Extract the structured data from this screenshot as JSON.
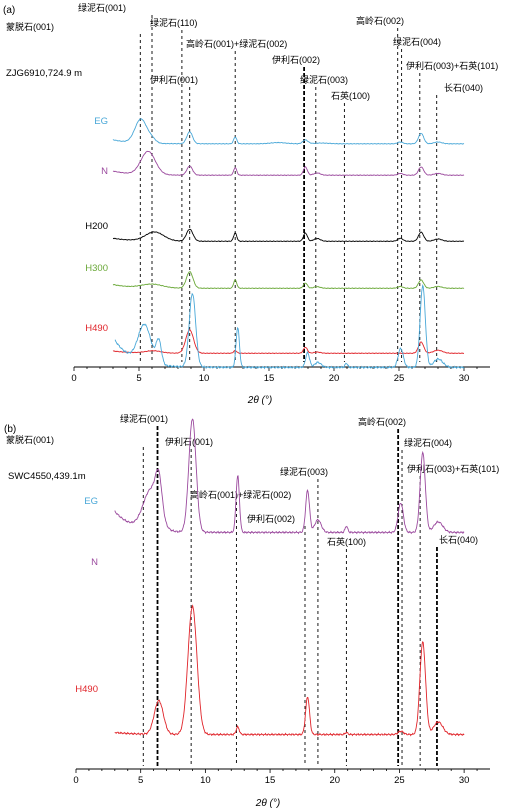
{
  "chart_data": [
    {
      "type": "line",
      "panel_label": "(a)",
      "sample": "ZJG6910,724.9 m",
      "xlabel": "2θ (°)",
      "xlim": [
        0,
        32
      ],
      "xticks": [
        0,
        5,
        10,
        15,
        20,
        25,
        30
      ],
      "grid": false,
      "legend": "inline labels left of each trace",
      "reference_lines": [
        {
          "x": 5.1,
          "label": "蒙脱石(001)",
          "style": "dashed"
        },
        {
          "x": 6.0,
          "label": "绿泥石(001)",
          "style": "dashed"
        },
        {
          "x": 8.3,
          "label": "绿泥石(110)",
          "style": "dashed"
        },
        {
          "x": 8.9,
          "label": "伊利石(001)",
          "style": "dashed"
        },
        {
          "x": 12.4,
          "label": "高岭石(001)+绿泥石(002)",
          "style": "dashed"
        },
        {
          "x": 17.7,
          "label": "伊利石(002)",
          "style": "bold-dashed"
        },
        {
          "x": 18.6,
          "label": "绿泥石(003)",
          "style": "dashed"
        },
        {
          "x": 20.8,
          "label": "石英(100)",
          "style": "dashed"
        },
        {
          "x": 24.9,
          "label": "高岭石(002)",
          "style": "dashed"
        },
        {
          "x": 25.2,
          "label": "绿泥石(004)",
          "style": "dashed"
        },
        {
          "x": 26.6,
          "label": "伊利石(003)+石英(101)",
          "style": "dashed"
        },
        {
          "x": 27.9,
          "label": "长石(040)",
          "style": "dashed"
        }
      ],
      "series": [
        {
          "name": "EG",
          "color": "#4aa8d8",
          "baseline": 0.28,
          "start": 0.55,
          "peaks": [
            [
              5.15,
              1.6,
              0.45
            ],
            [
              6.0,
              0.25,
              0.3
            ],
            [
              8.9,
              0.8,
              0.22
            ],
            [
              12.4,
              0.45,
              0.12
            ],
            [
              15.7,
              0.08,
              0.6
            ],
            [
              17.8,
              0.25,
              0.2
            ],
            [
              19.0,
              0.05,
              0.6
            ],
            [
              25.1,
              0.12,
              0.2
            ],
            [
              26.7,
              0.7,
              0.2
            ],
            [
              28.0,
              0.12,
              0.3
            ]
          ]
        },
        {
          "name": "N",
          "color": "#9b4a9e",
          "baseline": 0.32,
          "start": 0.6,
          "peaks": [
            [
              5.7,
              1.55,
              0.55
            ],
            [
              8.9,
              0.6,
              0.22
            ],
            [
              12.4,
              0.5,
              0.12
            ],
            [
              17.8,
              0.55,
              0.15
            ],
            [
              18.7,
              0.15,
              0.25
            ],
            [
              25.1,
              0.12,
              0.2
            ],
            [
              26.7,
              0.55,
              0.2
            ],
            [
              28.0,
              0.12,
              0.3
            ]
          ]
        },
        {
          "name": "H200",
          "color": "#000000",
          "baseline": 0.25,
          "start": 0.45,
          "peaks": [
            [
              6.2,
              0.6,
              0.7
            ],
            [
              8.9,
              0.8,
              0.25
            ],
            [
              12.4,
              0.55,
              0.12
            ],
            [
              17.8,
              0.55,
              0.15
            ],
            [
              18.7,
              0.18,
              0.25
            ],
            [
              25.1,
              0.2,
              0.2
            ],
            [
              26.7,
              0.6,
              0.2
            ],
            [
              28.0,
              0.15,
              0.3
            ]
          ]
        },
        {
          "name": "H300",
          "color": "#6aa838",
          "baseline": 0.25,
          "start": 0.5,
          "peaks": [
            [
              6.0,
              0.25,
              0.8
            ],
            [
              8.9,
              1.1,
              0.25
            ],
            [
              12.4,
              0.55,
              0.12
            ],
            [
              17.8,
              0.35,
              0.15
            ],
            [
              18.7,
              0.1,
              0.25
            ],
            [
              25.1,
              0.12,
              0.2
            ],
            [
              26.7,
              0.55,
              0.2
            ],
            [
              28.0,
              0.12,
              0.3
            ]
          ]
        },
        {
          "name": "H490",
          "color": "#e0242a",
          "baseline": 0.25,
          "start": 0.4,
          "peaks": [
            [
              6.1,
              0.15,
              0.6
            ],
            [
              8.9,
              1.55,
              0.3
            ],
            [
              12.4,
              0.18,
              0.12
            ],
            [
              17.8,
              0.4,
              0.15
            ],
            [
              18.7,
              0.08,
              0.25
            ],
            [
              26.7,
              0.75,
              0.2
            ],
            [
              28.0,
              0.2,
              0.35
            ]
          ]
        }
      ]
    },
    {
      "type": "line",
      "panel_label": "(b)",
      "sample": "SWC4550,439.1m",
      "xlabel": "2θ (°)",
      "xlim": [
        0,
        32
      ],
      "xticks": [
        0,
        5,
        10,
        15,
        20,
        25,
        30
      ],
      "grid": false,
      "legend": "inline labels left of each trace",
      "reference_lines": [
        {
          "x": 5.2,
          "label": "蒙脱石(001)",
          "style": "dashed"
        },
        {
          "x": 6.3,
          "label": "绿泥石(001)",
          "style": "bold-dashed"
        },
        {
          "x": 8.9,
          "label": "伊利石(001)",
          "style": "dashed"
        },
        {
          "x": 12.4,
          "label": "高岭石(001)+绿泥石(002)",
          "style": "dashed"
        },
        {
          "x": 17.7,
          "label": "伊利石(002)",
          "style": "dashed"
        },
        {
          "x": 18.7,
          "label": "绿泥石(003)",
          "style": "dashed"
        },
        {
          "x": 20.9,
          "label": "石英(100)",
          "style": "dashed"
        },
        {
          "x": 24.9,
          "label": "高岭石(002)",
          "style": "bold-dashed"
        },
        {
          "x": 25.2,
          "label": "绿泥石(004)",
          "style": "dashed"
        },
        {
          "x": 26.6,
          "label": "伊利石(003)+石英(101)",
          "style": "dashed"
        },
        {
          "x": 27.9,
          "label": "长石(040)",
          "style": "bold-dashed"
        }
      ],
      "series": [
        {
          "name": "EG",
          "color": "#4aa8d8",
          "baseline": 0.3,
          "start": 0.95,
          "peaks": [
            [
              5.3,
              0.9,
              0.5
            ],
            [
              6.4,
              0.55,
              0.2
            ],
            [
              9.0,
              1.75,
              0.25
            ],
            [
              12.5,
              0.95,
              0.13
            ],
            [
              17.9,
              0.35,
              0.15
            ],
            [
              18.7,
              0.12,
              0.25
            ],
            [
              20.9,
              0.1,
              0.1
            ],
            [
              25.1,
              0.45,
              0.2
            ],
            [
              26.8,
              1.95,
              0.2
            ],
            [
              28.0,
              0.2,
              0.35
            ]
          ]
        },
        {
          "name": "N",
          "color": "#9b4a9e",
          "baseline": 0.3,
          "start": 0.8,
          "peaks": [
            [
              5.8,
              0.95,
              0.6
            ],
            [
              6.4,
              0.85,
              0.25
            ],
            [
              9.0,
              2.7,
              0.28
            ],
            [
              12.5,
              1.35,
              0.13
            ],
            [
              17.9,
              1.0,
              0.15
            ],
            [
              18.7,
              0.3,
              0.25
            ],
            [
              20.9,
              0.15,
              0.1
            ],
            [
              25.1,
              0.7,
              0.2
            ],
            [
              26.8,
              1.9,
              0.2
            ],
            [
              28.0,
              0.25,
              0.35
            ]
          ]
        },
        {
          "name": "H490",
          "color": "#e0242a",
          "baseline": 0.25,
          "start": 0.3,
          "peaks": [
            [
              6.4,
              0.8,
              0.35
            ],
            [
              9.0,
              3.05,
              0.35
            ],
            [
              12.5,
              0.18,
              0.12
            ],
            [
              17.9,
              0.9,
              0.15
            ],
            [
              20.9,
              0.05,
              0.1
            ],
            [
              25.1,
              0.08,
              0.2
            ],
            [
              26.8,
              2.2,
              0.22
            ],
            [
              28.0,
              0.3,
              0.35
            ]
          ]
        }
      ]
    }
  ]
}
